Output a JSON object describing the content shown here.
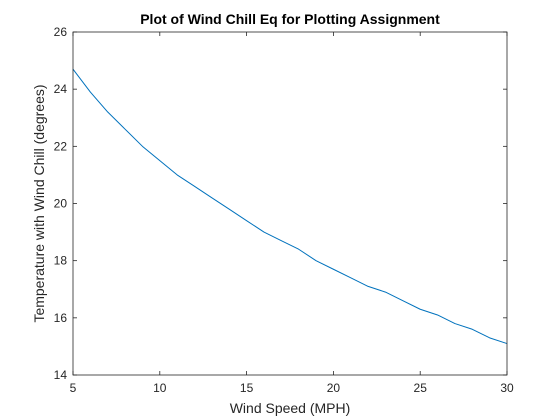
{
  "chart_data": {
    "type": "line",
    "title": "Plot of Wind Chill Eq for Plotting Assignment",
    "xlabel": "Wind Speed (MPH)",
    "ylabel": "Temperature with Wind Chill (degrees)",
    "xlim": [
      5,
      30
    ],
    "ylim": [
      14,
      26
    ],
    "xticks": [
      5,
      10,
      15,
      20,
      25,
      30
    ],
    "yticks": [
      14,
      16,
      18,
      20,
      22,
      24,
      26
    ],
    "grid": false,
    "box": true,
    "series": [
      {
        "color": "#0072BD",
        "x": [
          5,
          6,
          7,
          8,
          9,
          10,
          11,
          12,
          13,
          14,
          15,
          16,
          17,
          18,
          19,
          20,
          21,
          22,
          23,
          24,
          25,
          26,
          27,
          28,
          29,
          30
        ],
        "y": [
          24.7,
          23.9,
          23.2,
          22.6,
          22.0,
          21.5,
          21.0,
          20.6,
          20.2,
          19.8,
          19.4,
          19.0,
          18.7,
          18.4,
          18.0,
          17.7,
          17.4,
          17.1,
          16.9,
          16.6,
          16.3,
          16.1,
          15.8,
          15.6,
          15.3,
          15.1
        ]
      }
    ]
  }
}
